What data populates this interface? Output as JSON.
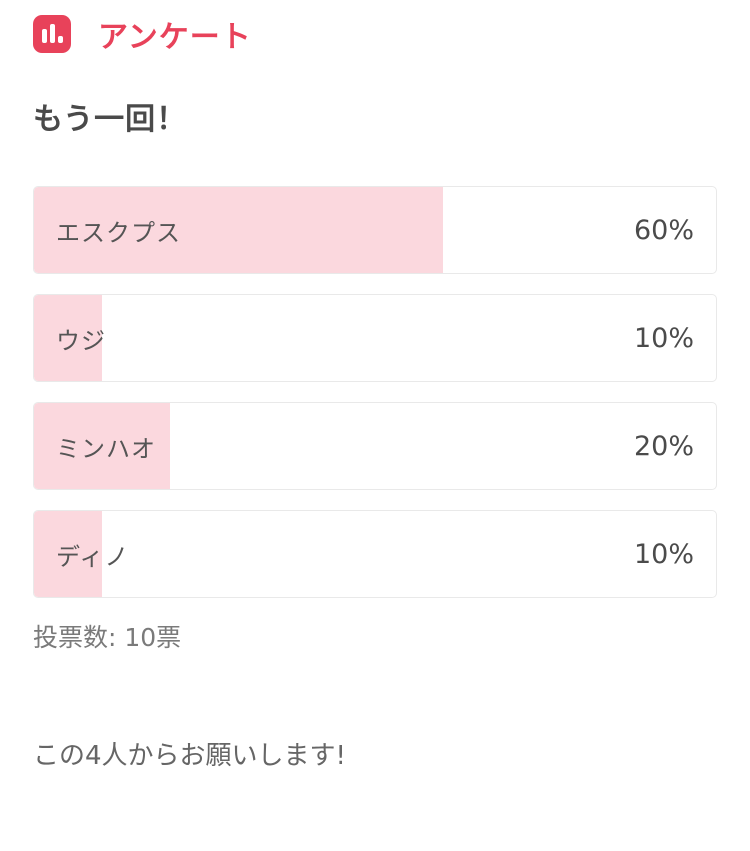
{
  "header": {
    "icon": "bar-chart-icon",
    "app_label": "アンケート"
  },
  "poll": {
    "title": "もう一回！",
    "options": [
      {
        "label": "エスクプス",
        "percent": 60,
        "percent_label": "60%"
      },
      {
        "label": "ウジ",
        "percent": 10,
        "percent_label": "10%"
      },
      {
        "label": "ミンハオ",
        "percent": 20,
        "percent_label": "20%"
      },
      {
        "label": "ディノ",
        "percent": 10,
        "percent_label": "10%"
      }
    ],
    "total_votes_label": "投票数: 10票"
  },
  "footer": {
    "note": "この4人からお願いします!"
  },
  "colors": {
    "accent": "#e8425a",
    "bar_fill": "#fbd8de",
    "border": "#e9e9e9"
  },
  "chart_data": {
    "type": "bar",
    "title": "もう一回！",
    "categories": [
      "エスクプス",
      "ウジ",
      "ミンハオ",
      "ディノ"
    ],
    "values": [
      60,
      10,
      20,
      10
    ],
    "unit": "%",
    "total_votes": 10,
    "xlim": [
      0,
      100
    ]
  }
}
